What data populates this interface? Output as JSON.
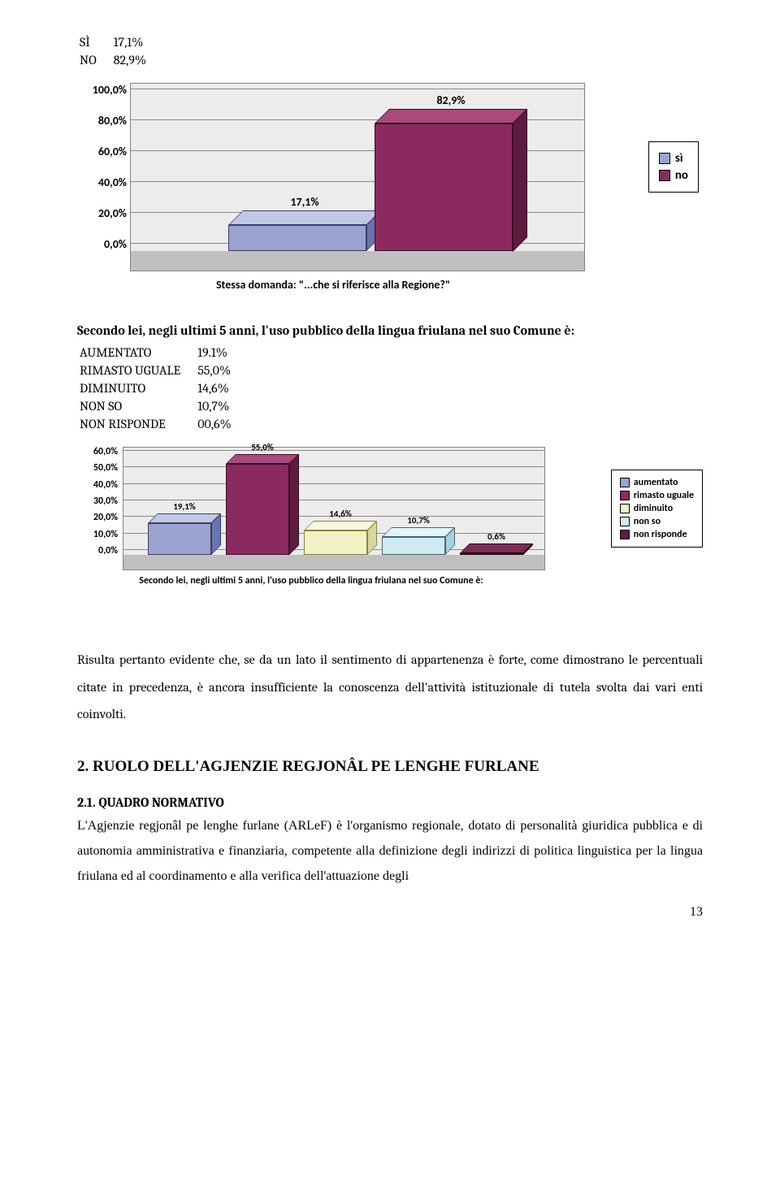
{
  "top": {
    "rows": [
      {
        "label": "SÌ",
        "value": "17,1%"
      },
      {
        "label": "NO",
        "value": "82,9%"
      }
    ]
  },
  "chart1": {
    "type": "bar",
    "yticks": [
      "0,0%",
      "20,0%",
      "40,0%",
      "60,0%",
      "80,0%",
      "100,0%"
    ],
    "ylim": [
      0,
      100
    ],
    "caption": "Stessa domanda: \"...che si riferisce alla Regione?\"",
    "plot_bg": "#ececec",
    "floor_color": "#c0c0c0",
    "grid_color": "#8a8a8a",
    "bars": [
      {
        "label": "17,1%",
        "value": 17.1,
        "front": "#9aa3d0",
        "side": "#6a74ad",
        "top": "#c2c8e4",
        "stroke": "#3b3b6a"
      },
      {
        "label": "82,9%",
        "value": 82.9,
        "front": "#8a2a5e",
        "side": "#5e1b40",
        "top": "#aa4a7c",
        "stroke": "#3a0e27"
      }
    ],
    "legend": [
      {
        "swatch": "#9aa3d0",
        "label": "sì"
      },
      {
        "swatch": "#8a2a5e",
        "label": "no"
      }
    ]
  },
  "q2": {
    "text": "Secondo lei, negli ultimi 5 anni, l'uso pubblico della lingua friulana nel suo Comune è:",
    "rows": [
      {
        "label": "AUMENTATO",
        "value": "19.1%"
      },
      {
        "label": "RIMASTO UGUALE",
        "value": "55,0%"
      },
      {
        "label": "DIMINUITO",
        "value": "14,6%"
      },
      {
        "label": "NON SO",
        "value": "10,7%"
      },
      {
        "label": "NON RISPONDE",
        "value": "00,6%"
      }
    ]
  },
  "chart2": {
    "type": "bar",
    "yticks": [
      "0,0%",
      "10,0%",
      "20,0%",
      "30,0%",
      "40,0%",
      "50,0%",
      "60,0%"
    ],
    "ylim": [
      0,
      60
    ],
    "caption": "Secondo lei, negli ultimi 5 anni, l'uso pubblico della lingua friulana nel suo Comune è:",
    "plot_bg": "#ececec",
    "floor_color": "#c0c0c0",
    "grid_color": "#8a8a8a",
    "bars": [
      {
        "label": "19,1%",
        "value": 19.1,
        "front": "#9aa3d0",
        "side": "#6a74ad",
        "top": "#c2c8e4",
        "stroke": "#3b3b6a"
      },
      {
        "label": "55,0%",
        "value": 55.0,
        "front": "#8a2a5e",
        "side": "#5e1b40",
        "top": "#aa4a7c",
        "stroke": "#3a0e27"
      },
      {
        "label": "14,6%",
        "value": 14.6,
        "front": "#f4f2c4",
        "side": "#d9d69b",
        "top": "#fbf9de",
        "stroke": "#8a863a"
      },
      {
        "label": "10,7%",
        "value": 10.7,
        "front": "#cfeaf0",
        "side": "#a8d0da",
        "top": "#e5f4f8",
        "stroke": "#3a6a74"
      },
      {
        "label": "0,6%",
        "value": 0.6,
        "front": "#5e1b40",
        "side": "#3a0e27",
        "top": "#7c2c55",
        "stroke": "#240818"
      }
    ],
    "legend": [
      {
        "swatch": "#9aa3d0",
        "label": "aumentato"
      },
      {
        "swatch": "#8a2a5e",
        "label": "rimasto uguale"
      },
      {
        "swatch": "#f4f2c4",
        "label": "diminuito"
      },
      {
        "swatch": "#cfeaf0",
        "label": "non so"
      },
      {
        "swatch": "#5e1b40",
        "label": "non risponde"
      }
    ]
  },
  "para1": "Risulta pertanto evidente che, se da un lato il sentimento di appartenenza è forte, come dimostrano le percentuali citate in precedenza, è ancora insufficiente la conoscenza dell'attività istituzionale di tutela svolta dai vari enti coinvolti.",
  "section2": {
    "title": "2. RUOLO DELL'AGJENZIE REGJONÂL PE LENGHE FURLANE",
    "subtitle": "2.1. QUADRO NORMATIVO",
    "body": "L'Agjenzie regjonâl pe lenghe furlane (ARLeF) è l'organismo regionale, dotato di personalità giuridica pubblica e di autonomia amministrativa e finanziaria, competente alla definizione degli indirizzi di politica linguistica per la lingua friulana ed al coordinamento e alla verifica dell'attuazione degli"
  },
  "pagenum": "13"
}
